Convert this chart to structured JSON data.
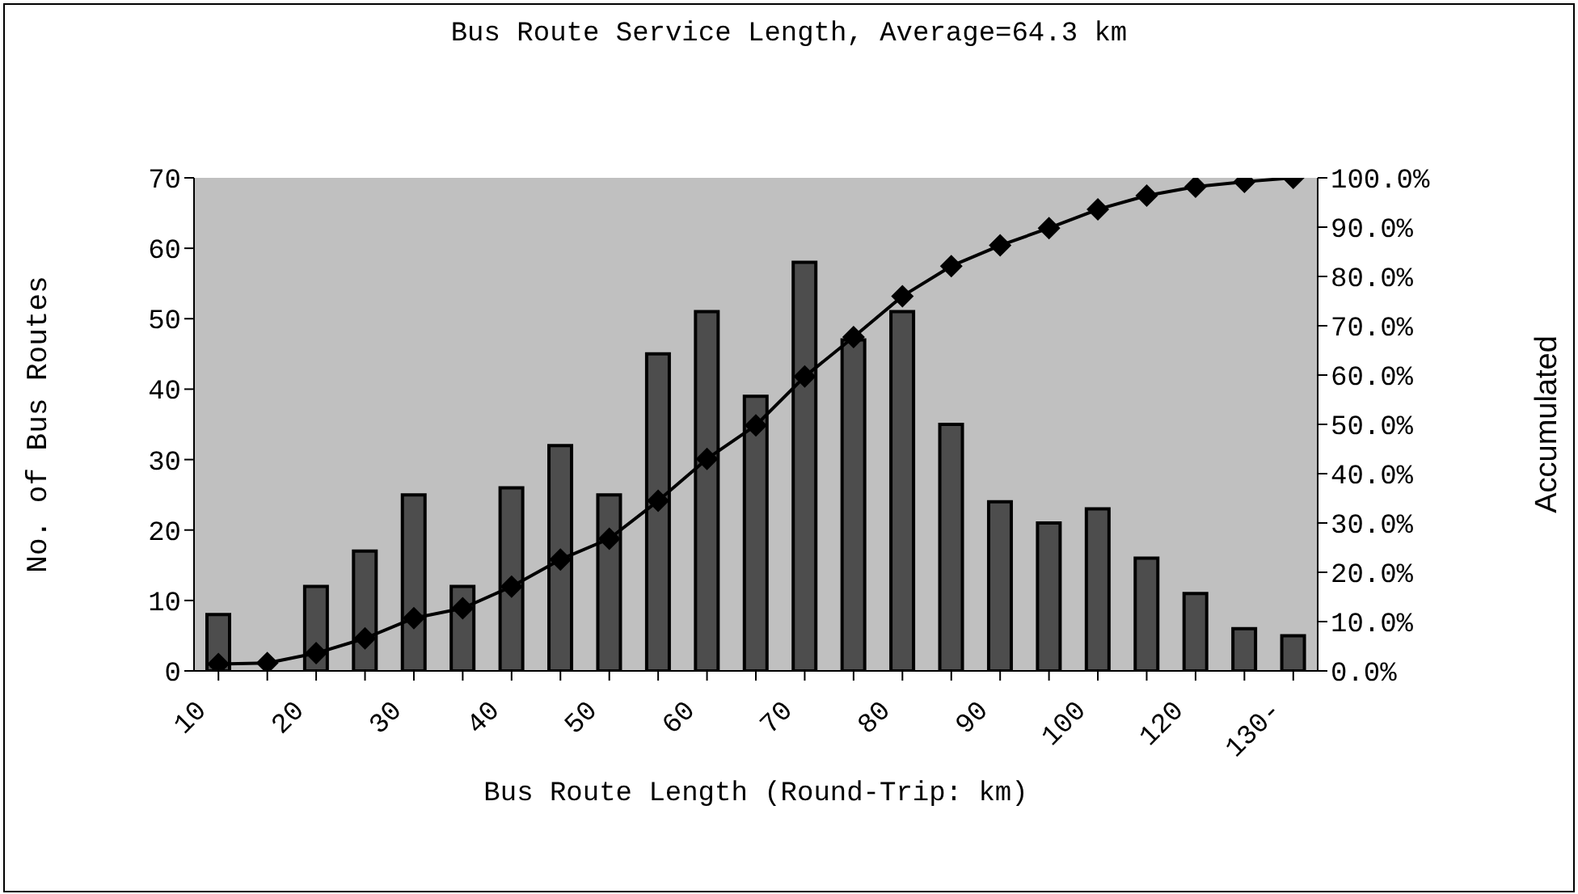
{
  "chart_data": {
    "type": "bar",
    "title": "Bus Route Service Length, Average=64.3 km",
    "xlabel": "Bus Route Length (Round-Trip: km)",
    "ylabel": "No. of Bus Routes",
    "y2label": "Accumulated",
    "categories": [
      "10",
      null,
      "20",
      null,
      "30",
      null,
      "40",
      null,
      "50",
      null,
      "60",
      null,
      "70",
      null,
      "80",
      null,
      "90",
      null,
      "100",
      null,
      "120",
      null,
      "130-"
    ],
    "series": [
      {
        "color": "#4d4d4d",
        "values": [
          8,
          0,
          12,
          17,
          25,
          12,
          26,
          32,
          25,
          45,
          51,
          39,
          58,
          47,
          51,
          35,
          24,
          21,
          23,
          16,
          11,
          6,
          5
        ]
      },
      {
        "type": "line",
        "axis": "y2",
        "color": "#000000",
        "marker": "diamond",
        "values": [
          1.4,
          1.6,
          3.6,
          6.6,
          10.7,
          12.7,
          17.1,
          22.6,
          26.8,
          34.5,
          43.0,
          49.8,
          59.7,
          67.7,
          76.0,
          82.1,
          86.3,
          89.8,
          93.6,
          96.4,
          98.2,
          99.2,
          100
        ]
      }
    ],
    "ylim": [
      0,
      70
    ],
    "yticks": [
      0,
      10,
      20,
      30,
      40,
      50,
      60,
      70
    ],
    "y2lim": [
      0,
      100
    ],
    "y2ticks": [
      {
        "value": 0,
        "label": "0.0%"
      },
      {
        "value": 10,
        "label": "10.0%"
      },
      {
        "value": 20,
        "label": "20.0%"
      },
      {
        "value": 30,
        "label": "30.0%"
      },
      {
        "value": 40,
        "label": "40.0%"
      },
      {
        "value": 50,
        "label": "50.0%"
      },
      {
        "value": 60,
        "label": "60.0%"
      },
      {
        "value": 70,
        "label": "70.0%"
      },
      {
        "value": 80,
        "label": "80.0%"
      },
      {
        "value": 90,
        "label": "90.0%"
      },
      {
        "value": 100,
        "label": "100.0%"
      }
    ]
  }
}
